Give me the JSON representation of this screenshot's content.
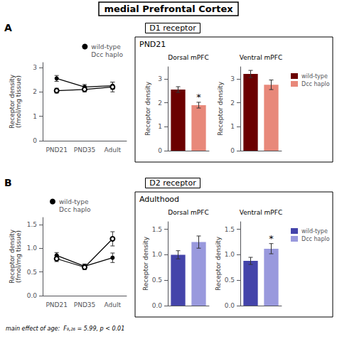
{
  "title": "medial Prefrontal Cortex",
  "chart_data": [
    {
      "type": "line",
      "title": "D1 receptor",
      "annotations": [
        {
          "text": "A"
        }
      ],
      "categories": [
        "PND21",
        "PND35",
        "Adult"
      ],
      "ylabel": "Receptor density\n(fmol/mg tissue)",
      "ylim": [
        0,
        3.2
      ],
      "yticks": [
        0,
        1,
        2,
        3
      ],
      "grid": false,
      "legend": "upper right",
      "series": [
        {
          "name": "wild-type",
          "color": "#000000",
          "marker": "circle",
          "values": [
            2.55,
            2.2,
            2.25
          ],
          "errors": [
            0.12,
            0.1,
            0.15
          ]
        },
        {
          "name": "Dcc haplo",
          "color": "#000000",
          "marker": "open",
          "values": [
            2.05,
            2.1,
            2.2
          ],
          "errors": [
            0.1,
            0.1,
            0.2
          ]
        }
      ]
    },
    {
      "type": "bar",
      "title": "Dorsal mPFC",
      "annotations": [
        {
          "text": "PND21"
        },
        {
          "text": "*",
          "series": "Dcc haplo"
        }
      ],
      "categories": [
        null
      ],
      "tick_labels": "y",
      "ylabel": "Receptor density",
      "ylim": [
        0,
        3.5
      ],
      "yticks": [
        0,
        1,
        2,
        3
      ],
      "grid": false,
      "legend": false,
      "series": [
        {
          "name": "wild-type",
          "color": "#6B0000",
          "values": [
            2.55
          ],
          "errors": [
            0.12
          ]
        },
        {
          "name": "Dcc haplo",
          "color": "#E8887A",
          "values": [
            1.9
          ],
          "errors": [
            0.12
          ]
        }
      ]
    },
    {
      "type": "bar",
      "title": "Ventral mPFC",
      "categories": [
        null
      ],
      "tick_labels": "y",
      "ylabel": "Receptor density",
      "ylim": [
        0,
        3.5
      ],
      "yticks": [
        0,
        1,
        2,
        3
      ],
      "grid": false,
      "legend": "upper right",
      "series": [
        {
          "name": "wild-type",
          "color": "#6B0000",
          "values": [
            3.2
          ],
          "errors": [
            0.15
          ]
        },
        {
          "name": "Dcc haplo",
          "color": "#E8887A",
          "values": [
            2.75
          ],
          "errors": [
            0.2
          ]
        }
      ]
    },
    {
      "type": "line",
      "title": "D2 receptor",
      "annotations": [
        {
          "text": "B"
        },
        {
          "text": "main effect of age:  F₉,₂₆ = 5.99, p < 0.01"
        }
      ],
      "categories": [
        "PND21",
        "PND35",
        "Adult"
      ],
      "ylabel": "Receptor density\n(fmol/mg tissue)",
      "ylim": [
        0,
        1.65
      ],
      "yticks": [
        {
          "value": 0,
          "label": "0.0"
        },
        0.5,
        {
          "value": 1,
          "label": "1.0"
        },
        1.5
      ],
      "grid": false,
      "legend": "upper left",
      "series": [
        {
          "name": "wild-type",
          "color": "#000000",
          "marker": "circle",
          "values": [
            0.85,
            0.62,
            0.8
          ],
          "errors": [
            0.06,
            0.05,
            0.1
          ]
        },
        {
          "name": "Dcc haplo",
          "color": "#000000",
          "marker": "open",
          "values": [
            0.78,
            0.6,
            1.2
          ],
          "errors": [
            0.06,
            0.05,
            0.15
          ]
        }
      ]
    },
    {
      "type": "bar",
      "title": "Dorsal mPFC",
      "annotations": [
        {
          "text": "Adulthood"
        }
      ],
      "categories": [
        null
      ],
      "tick_labels": "y",
      "ylabel": "Receptor density",
      "ylim": [
        0,
        1.65
      ],
      "yticks": [
        {
          "value": 0,
          "label": "0.0"
        },
        0.5,
        {
          "value": 1,
          "label": "1.0"
        },
        1.5
      ],
      "grid": false,
      "legend": false,
      "series": [
        {
          "name": "wild-type",
          "color": "#4444AA",
          "values": [
            1.0
          ],
          "errors": [
            0.08
          ]
        },
        {
          "name": "Dcc haplo",
          "color": "#9999DD",
          "values": [
            1.25
          ],
          "errors": [
            0.12
          ]
        }
      ]
    },
    {
      "type": "bar",
      "title": "Ventral mPFC",
      "annotations": [
        {
          "text": "*",
          "series": "Dcc haplo"
        }
      ],
      "categories": [
        null
      ],
      "tick_labels": "y",
      "ylabel": "Receptor density",
      "ylim": [
        0,
        1.65
      ],
      "yticks": [
        {
          "value": 0,
          "label": "0.0"
        },
        0.5,
        {
          "value": 1,
          "label": "1.0"
        },
        1.5
      ],
      "grid": false,
      "legend": "upper right",
      "series": [
        {
          "name": "wild-type",
          "color": "#4444AA",
          "values": [
            0.88
          ],
          "errors": [
            0.07
          ]
        },
        {
          "name": "Dcc haplo",
          "color": "#9999DD",
          "values": [
            1.12
          ],
          "errors": [
            0.1
          ]
        }
      ]
    }
  ]
}
